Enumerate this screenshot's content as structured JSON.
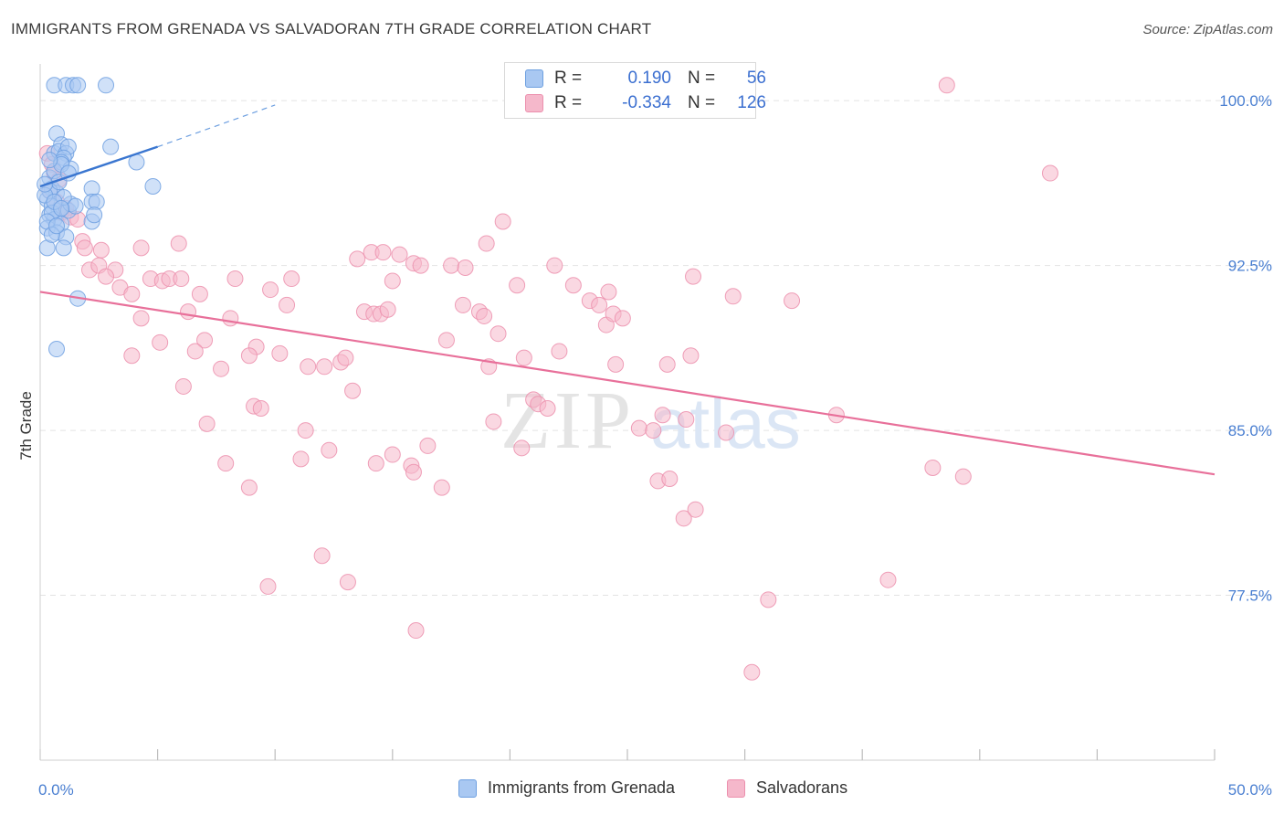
{
  "title": "IMMIGRANTS FROM GRENADA VS SALVADORAN 7TH GRADE CORRELATION CHART",
  "source": "Source: ZipAtlas.com",
  "watermark": {
    "zip": "ZIP",
    "atlas": "atlas"
  },
  "colors": {
    "blue_fill": "#a9c8f2",
    "blue_stroke": "#6d9fe0",
    "blue_line": "#3a76d0",
    "pink_fill": "#f5b8cb",
    "pink_stroke": "#ec8fad",
    "pink_line": "#e8709a",
    "axis_text": "#4a7fd1",
    "grid": "#e3e3e3"
  },
  "legend": {
    "r_label": "R =",
    "n_label": "N =",
    "series": [
      {
        "name": "Immigrants from Grenada",
        "r": "0.190",
        "n": "56"
      },
      {
        "name": "Salvadorans",
        "r": "-0.334",
        "n": "126"
      }
    ]
  },
  "chart_data": {
    "type": "scatter",
    "title": "IMMIGRANTS FROM GRENADA VS SALVADORAN 7TH GRADE CORRELATION CHART",
    "xlabel": "",
    "ylabel": "7th Grade",
    "xlim": [
      0,
      50
    ],
    "ylim": [
      70.0,
      102.0
    ],
    "x_tick_labels": [
      "0.0%",
      "50.0%"
    ],
    "y_ticks": [
      77.5,
      85.0,
      92.5,
      100.0
    ],
    "y_tick_labels": [
      "77.5%",
      "85.0%",
      "92.5%",
      "100.0%"
    ],
    "grid": true,
    "series": [
      {
        "name": "Immigrants from Grenada",
        "trend": {
          "x": [
            0.0,
            5.0
          ],
          "y": [
            96.1,
            97.9
          ],
          "dashed_to": [
            10.0,
            99.8
          ]
        },
        "points": [
          [
            0.6,
            100.7
          ],
          [
            1.1,
            100.7
          ],
          [
            1.4,
            100.7
          ],
          [
            1.6,
            100.7
          ],
          [
            2.8,
            100.7
          ],
          [
            0.7,
            98.5
          ],
          [
            0.6,
            97.6
          ],
          [
            0.9,
            98.0
          ],
          [
            0.8,
            97.7
          ],
          [
            1.1,
            97.6
          ],
          [
            1.2,
            97.9
          ],
          [
            1.0,
            97.4
          ],
          [
            0.9,
            97.2
          ],
          [
            1.3,
            96.9
          ],
          [
            0.4,
            96.5
          ],
          [
            0.5,
            96.0
          ],
          [
            0.7,
            95.8
          ],
          [
            0.3,
            95.5
          ],
          [
            0.5,
            95.2
          ],
          [
            0.8,
            95.0
          ],
          [
            1.2,
            95.0
          ],
          [
            0.4,
            94.8
          ],
          [
            0.6,
            94.6
          ],
          [
            0.9,
            94.4
          ],
          [
            0.3,
            94.2
          ],
          [
            0.7,
            94.0
          ],
          [
            1.1,
            93.8
          ],
          [
            0.3,
            93.3
          ],
          [
            1.0,
            93.3
          ],
          [
            2.2,
            96.0
          ],
          [
            2.2,
            95.4
          ],
          [
            2.4,
            95.4
          ],
          [
            2.2,
            94.5
          ],
          [
            3.0,
            97.9
          ],
          [
            4.1,
            97.2
          ],
          [
            4.8,
            96.1
          ],
          [
            1.6,
            91.0
          ],
          [
            0.7,
            88.7
          ],
          [
            0.4,
            95.9
          ],
          [
            0.5,
            94.9
          ],
          [
            0.6,
            96.8
          ],
          [
            1.3,
            95.3
          ],
          [
            1.0,
            95.6
          ],
          [
            0.8,
            96.3
          ],
          [
            0.2,
            95.7
          ],
          [
            0.3,
            94.5
          ],
          [
            0.5,
            93.9
          ],
          [
            0.9,
            97.1
          ],
          [
            1.2,
            96.7
          ],
          [
            0.4,
            97.3
          ],
          [
            0.7,
            94.3
          ],
          [
            1.5,
            95.2
          ],
          [
            0.6,
            95.4
          ],
          [
            0.2,
            96.2
          ],
          [
            0.9,
            95.1
          ],
          [
            2.3,
            94.8
          ]
        ]
      },
      {
        "name": "Salvadorans",
        "trend": {
          "x": [
            0.0,
            50.0
          ],
          "y": [
            91.3,
            83.0
          ]
        },
        "points": [
          [
            0.3,
            97.6
          ],
          [
            0.5,
            97.1
          ],
          [
            0.6,
            96.7
          ],
          [
            0.8,
            96.4
          ],
          [
            0.4,
            95.9
          ],
          [
            0.7,
            95.4
          ],
          [
            1.1,
            95.1
          ],
          [
            0.9,
            94.9
          ],
          [
            1.3,
            94.7
          ],
          [
            1.6,
            94.6
          ],
          [
            1.8,
            93.6
          ],
          [
            1.9,
            93.3
          ],
          [
            2.6,
            93.2
          ],
          [
            4.3,
            93.3
          ],
          [
            5.9,
            93.5
          ],
          [
            2.1,
            92.3
          ],
          [
            2.5,
            92.5
          ],
          [
            3.2,
            92.3
          ],
          [
            2.8,
            92.0
          ],
          [
            3.4,
            91.5
          ],
          [
            3.9,
            91.2
          ],
          [
            4.7,
            91.9
          ],
          [
            5.2,
            91.8
          ],
          [
            5.5,
            91.9
          ],
          [
            6.0,
            91.9
          ],
          [
            6.8,
            91.2
          ],
          [
            8.3,
            91.9
          ],
          [
            9.8,
            91.4
          ],
          [
            10.7,
            91.9
          ],
          [
            10.5,
            90.7
          ],
          [
            6.3,
            90.4
          ],
          [
            4.3,
            90.1
          ],
          [
            8.1,
            90.1
          ],
          [
            5.1,
            89.0
          ],
          [
            7.0,
            89.1
          ],
          [
            9.2,
            88.8
          ],
          [
            3.9,
            88.4
          ],
          [
            6.6,
            88.6
          ],
          [
            7.7,
            87.8
          ],
          [
            8.9,
            88.4
          ],
          [
            10.2,
            88.5
          ],
          [
            11.4,
            87.9
          ],
          [
            12.1,
            87.9
          ],
          [
            12.8,
            88.1
          ],
          [
            13.0,
            88.3
          ],
          [
            13.3,
            86.8
          ],
          [
            6.1,
            87.0
          ],
          [
            7.1,
            85.3
          ],
          [
            9.1,
            86.1
          ],
          [
            9.4,
            86.0
          ],
          [
            11.3,
            85.0
          ],
          [
            11.1,
            83.7
          ],
          [
            12.3,
            84.1
          ],
          [
            14.3,
            83.5
          ],
          [
            15.0,
            83.9
          ],
          [
            15.8,
            83.4
          ],
          [
            15.9,
            83.1
          ],
          [
            16.5,
            84.3
          ],
          [
            17.1,
            82.4
          ],
          [
            7.9,
            83.5
          ],
          [
            8.9,
            82.4
          ],
          [
            12.0,
            79.3
          ],
          [
            13.1,
            78.1
          ],
          [
            9.7,
            77.9
          ],
          [
            16.0,
            75.9
          ],
          [
            13.8,
            90.4
          ],
          [
            14.2,
            90.3
          ],
          [
            14.5,
            90.3
          ],
          [
            14.8,
            90.5
          ],
          [
            13.5,
            92.8
          ],
          [
            14.1,
            93.1
          ],
          [
            14.6,
            93.1
          ],
          [
            15.0,
            91.8
          ],
          [
            15.3,
            93.0
          ],
          [
            15.9,
            92.6
          ],
          [
            16.2,
            92.5
          ],
          [
            17.5,
            92.5
          ],
          [
            18.0,
            90.7
          ],
          [
            17.3,
            89.1
          ],
          [
            18.7,
            90.4
          ],
          [
            18.9,
            90.2
          ],
          [
            19.0,
            93.5
          ],
          [
            19.5,
            89.4
          ],
          [
            19.7,
            94.5
          ],
          [
            19.3,
            85.4
          ],
          [
            19.1,
            87.9
          ],
          [
            20.3,
            91.6
          ],
          [
            20.6,
            88.3
          ],
          [
            20.5,
            84.2
          ],
          [
            21.0,
            86.4
          ],
          [
            21.2,
            86.2
          ],
          [
            21.6,
            86.0
          ],
          [
            21.9,
            92.5
          ],
          [
            22.1,
            88.6
          ],
          [
            22.7,
            91.6
          ],
          [
            23.4,
            90.9
          ],
          [
            23.8,
            90.7
          ],
          [
            24.1,
            89.8
          ],
          [
            24.2,
            91.3
          ],
          [
            24.4,
            90.3
          ],
          [
            24.5,
            88.0
          ],
          [
            24.8,
            90.1
          ],
          [
            25.0,
            100.7
          ],
          [
            25.5,
            85.1
          ],
          [
            26.1,
            85.0
          ],
          [
            26.3,
            82.7
          ],
          [
            26.8,
            82.8
          ],
          [
            26.5,
            85.7
          ],
          [
            27.5,
            85.5
          ],
          [
            27.7,
            88.4
          ],
          [
            27.8,
            92.0
          ],
          [
            29.2,
            84.9
          ],
          [
            29.5,
            91.1
          ],
          [
            27.4,
            81.0
          ],
          [
            27.9,
            81.4
          ],
          [
            31.0,
            77.3
          ],
          [
            30.3,
            74.0
          ],
          [
            32.0,
            90.9
          ],
          [
            33.9,
            85.7
          ],
          [
            36.1,
            78.2
          ],
          [
            38.6,
            100.7
          ],
          [
            38.0,
            83.3
          ],
          [
            39.3,
            82.9
          ],
          [
            43.0,
            96.7
          ],
          [
            18.1,
            92.4
          ],
          [
            26.7,
            88.0
          ]
        ]
      }
    ]
  }
}
